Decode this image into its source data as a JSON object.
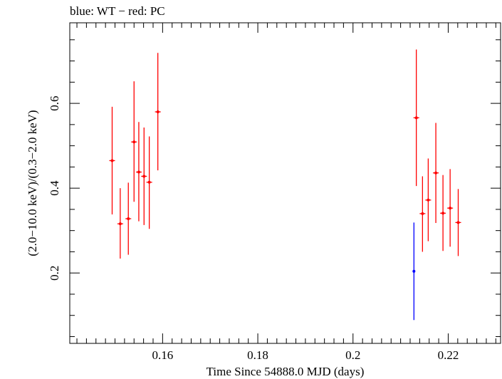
{
  "chart_data": {
    "type": "scatter",
    "title": "blue: WT − red: PC",
    "xlabel": "Time Since 54888.0 MJD (days)",
    "ylabel": "(2.0−10.0 keV)/(0.3−2.0 keV)",
    "xlim": [
      0.1405,
      0.231
    ],
    "ylim": [
      0.034,
      0.79
    ],
    "xticks": [
      0.16,
      0.18,
      0.2,
      0.22
    ],
    "xtick_labels": [
      "0.16",
      "0.18",
      "0.2",
      "0.22"
    ],
    "yticks": [
      0.2,
      0.4,
      0.6
    ],
    "ytick_labels": [
      "0.2",
      "0.4",
      "0.6"
    ],
    "grid": false,
    "series": [
      {
        "color": "#ff0000",
        "points": [
          {
            "x": 0.1494,
            "y": 0.465,
            "xerr": 0.0006,
            "ylo": 0.338,
            "yhi": 0.592
          },
          {
            "x": 0.1511,
            "y": 0.316,
            "xerr": 0.0006,
            "ylo": 0.234,
            "yhi": 0.4
          },
          {
            "x": 0.1528,
            "y": 0.328,
            "xerr": 0.0006,
            "ylo": 0.243,
            "yhi": 0.413
          },
          {
            "x": 0.154,
            "y": 0.509,
            "xerr": 0.0006,
            "ylo": 0.368,
            "yhi": 0.652
          },
          {
            "x": 0.155,
            "y": 0.438,
            "xerr": 0.0006,
            "ylo": 0.322,
            "yhi": 0.556
          },
          {
            "x": 0.1561,
            "y": 0.428,
            "xerr": 0.0006,
            "ylo": 0.313,
            "yhi": 0.543
          },
          {
            "x": 0.1572,
            "y": 0.414,
            "xerr": 0.0006,
            "ylo": 0.304,
            "yhi": 0.522
          },
          {
            "x": 0.159,
            "y": 0.58,
            "xerr": 0.0006,
            "ylo": 0.442,
            "yhi": 0.719
          },
          {
            "x": 0.2133,
            "y": 0.566,
            "xerr": 0.0006,
            "ylo": 0.405,
            "yhi": 0.727
          },
          {
            "x": 0.2146,
            "y": 0.34,
            "xerr": 0.0006,
            "ylo": 0.25,
            "yhi": 0.428
          },
          {
            "x": 0.2158,
            "y": 0.372,
            "xerr": 0.0006,
            "ylo": 0.275,
            "yhi": 0.47
          },
          {
            "x": 0.2174,
            "y": 0.436,
            "xerr": 0.0006,
            "ylo": 0.318,
            "yhi": 0.554
          },
          {
            "x": 0.2189,
            "y": 0.341,
            "xerr": 0.0006,
            "ylo": 0.252,
            "yhi": 0.431
          },
          {
            "x": 0.2204,
            "y": 0.353,
            "xerr": 0.0006,
            "ylo": 0.262,
            "yhi": 0.445
          },
          {
            "x": 0.2221,
            "y": 0.319,
            "xerr": 0.0006,
            "ylo": 0.24,
            "yhi": 0.398
          }
        ]
      },
      {
        "color": "#0000ff",
        "points": [
          {
            "x": 0.2128,
            "y": 0.204,
            "xerr": 0.0002,
            "ylo": 0.089,
            "yhi": 0.319
          }
        ]
      }
    ]
  }
}
